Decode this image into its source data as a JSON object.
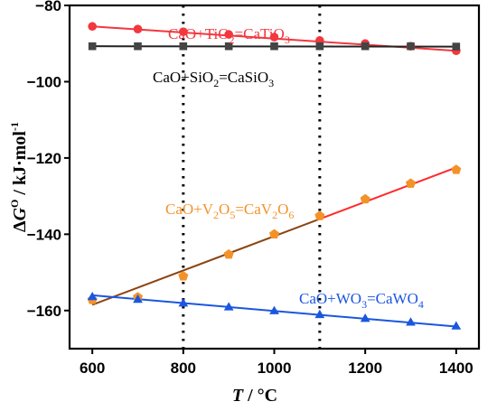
{
  "chart_data": {
    "type": "scatter",
    "xlabel": {
      "var": "T",
      "unit": " / °C"
    },
    "ylabel": {
      "delta": "Δ",
      "var": "G",
      "sup": "O",
      "unit": " / kJ·mol",
      "unit_sup": "-1"
    },
    "xlim": [
      550,
      1450
    ],
    "ylim": [
      -170,
      -80
    ],
    "x_ticks": [
      600,
      800,
      1000,
      1200,
      1400
    ],
    "y_ticks": [
      -80,
      -100,
      -120,
      -140,
      -160
    ],
    "grid": false,
    "legend": "none",
    "vlines": [
      800,
      1100
    ],
    "series": [
      {
        "name": "CaO+TiO2=CaTiO3",
        "label_parts": [
          [
            "CaO+TiO",
            false
          ],
          [
            "2",
            true
          ],
          [
            "=CaTiO",
            false
          ],
          [
            "3",
            true
          ]
        ],
        "color": "#f2373f",
        "fit_color": "#f2373f",
        "marker": "circle",
        "x": [
          600,
          700,
          800,
          900,
          1000,
          1100,
          1200,
          1300,
          1400
        ],
        "y": [
          -85.5,
          -86.2,
          -86.9,
          -87.6,
          -88.3,
          -89.2,
          -90.0,
          -90.7,
          -91.9
        ],
        "fit": [
          [
            600,
            -85.5
          ],
          [
            1400,
            -91.9
          ]
        ]
      },
      {
        "name": "CaO+SiO2=CaSiO3",
        "label_parts": [
          [
            "CaO+SiO",
            false
          ],
          [
            "2",
            true
          ],
          [
            "=CaSiO",
            false
          ],
          [
            "3",
            true
          ]
        ],
        "color": "#444444",
        "fit_color": "#222222",
        "marker": "square",
        "x": [
          600,
          700,
          800,
          900,
          1000,
          1100,
          1200,
          1300,
          1400
        ],
        "y": [
          -90.7,
          -90.7,
          -90.7,
          -90.7,
          -90.7,
          -90.7,
          -90.7,
          -90.7,
          -90.8
        ],
        "fit": [
          [
            600,
            -90.7
          ],
          [
            1400,
            -90.8
          ]
        ]
      },
      {
        "name": "CaO+V2O5=CaV2O6",
        "label_parts": [
          [
            "CaO+V",
            false
          ],
          [
            "2",
            true
          ],
          [
            "O",
            false
          ],
          [
            "5",
            true
          ],
          [
            "=CaV",
            false
          ],
          [
            "2",
            true
          ],
          [
            "O",
            false
          ],
          [
            "6",
            true
          ]
        ],
        "color": "#f4922a",
        "fit_color": "#8b4513",
        "fit_color2": "#ff2a2a",
        "marker": "pentagon",
        "x": [
          600,
          700,
          800,
          900,
          1000,
          1100,
          1200,
          1300,
          1400
        ],
        "y": [
          -157.2,
          -156.5,
          -151.0,
          -145.3,
          -140.0,
          -135.2,
          -130.8,
          -126.7,
          -123.1
        ],
        "fit": [
          [
            600,
            -158.5
          ],
          [
            1400,
            -122.5
          ]
        ]
      },
      {
        "name": "CaO+WO3=CaWO4",
        "label_parts": [
          [
            "CaO+WO",
            false
          ],
          [
            "3",
            true
          ],
          [
            "=CaWO",
            false
          ],
          [
            "4",
            true
          ]
        ],
        "color": "#1a56e0",
        "fit_color": "#1a56e0",
        "marker": "triangle",
        "x": [
          600,
          700,
          800,
          900,
          1000,
          1100,
          1200,
          1300,
          1400
        ],
        "y": [
          -156.3,
          -157.0,
          -158.0,
          -159.0,
          -160.0,
          -161.0,
          -162.0,
          -163.0,
          -164.0
        ],
        "fit": [
          [
            600,
            -156.0
          ],
          [
            1400,
            -164.2
          ]
        ]
      }
    ]
  }
}
